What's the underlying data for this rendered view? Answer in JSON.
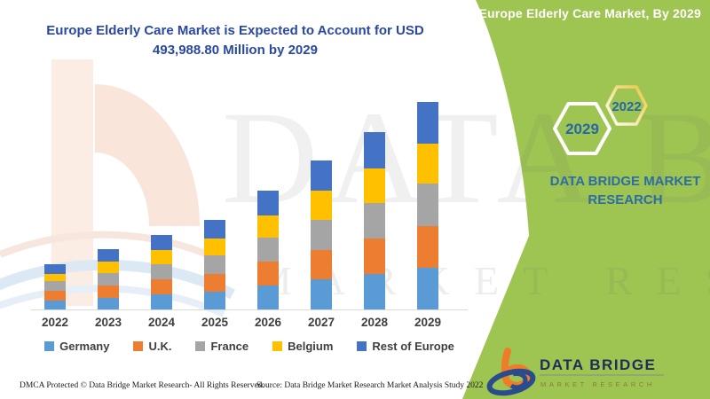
{
  "header": {
    "title_line1": "Europe Elderly Care Market is Expected to Account for USD",
    "title_line2": "493,988.80 Million by 2029",
    "title_color": "#2948A3"
  },
  "side_panel": {
    "bg_color": "#9EC552",
    "title": "Europe Elderly Care Market, By 2029",
    "hexagon_large_label": "2029",
    "hexagon_small_label": "2022",
    "hexagon_text_color": "#2567A8",
    "brand_line1": "DATA BRIDGE MARKET",
    "brand_line2": "RESEARCH",
    "brand_color": "#2D6CA5"
  },
  "watermarks": {
    "big_text": "DATA BRIDGE",
    "sub_text": "MARKET RESEARCH"
  },
  "logo": {
    "name": "DATA BRIDGE",
    "tagline": "MARKET RESEARCH",
    "icon": "data-bridge-b-swoosh-icon",
    "name_color": "#1F2C5C",
    "b_color": "#F07C28",
    "swoosh_color": "#2B4C8C"
  },
  "footer": {
    "dmca": "DMCA Protected © Data Bridge Market Research- All Rights Reserved.",
    "source": "Source: Data Bridge Market Research Market Analysis Study 2022"
  },
  "chart_data": {
    "type": "bar",
    "stacked": true,
    "title": "Europe Elderly Care Market is Expected to Account for USD 493,988.80 Million by 2029",
    "value_unit": "USD Million",
    "xlabel": "",
    "ylabel": "",
    "axis": {
      "y_axis_visible": false,
      "gridlines": false,
      "x_baseline_color": "#D9D9D9"
    },
    "legend_position": "bottom",
    "categories": [
      "2022",
      "2023",
      "2024",
      "2025",
      "2026",
      "2027",
      "2028",
      "2029"
    ],
    "series": [
      {
        "name": "Germany",
        "color": "#5B9BD5",
        "values": [
          22000,
          28000,
          35000,
          42000,
          57000,
          71000,
          84000,
          98500
        ]
      },
      {
        "name": "U.K.",
        "color": "#ED7D31",
        "values": [
          22000,
          29000,
          36000,
          43000,
          56000,
          71000,
          85000,
          99500
        ]
      },
      {
        "name": "France",
        "color": "#A5A5A5",
        "values": [
          23000,
          29000,
          36000,
          43000,
          57500,
          72000,
          85000,
          100800
        ]
      },
      {
        "name": "Belgium",
        "color": "#FFC000",
        "values": [
          17500,
          27000,
          34000,
          41000,
          53000,
          69000,
          82000,
          96500
        ]
      },
      {
        "name": "Rest of Europe",
        "color": "#4472C4",
        "values": [
          22500,
          30000,
          37000,
          45000,
          59500,
          72000,
          86000,
          98688.8
        ]
      }
    ],
    "totals_estimated": [
      107000,
      143000,
      178000,
      214000,
      283000,
      355000,
      422000,
      493988.8
    ],
    "highlight_value_2029": "493,988.80"
  }
}
